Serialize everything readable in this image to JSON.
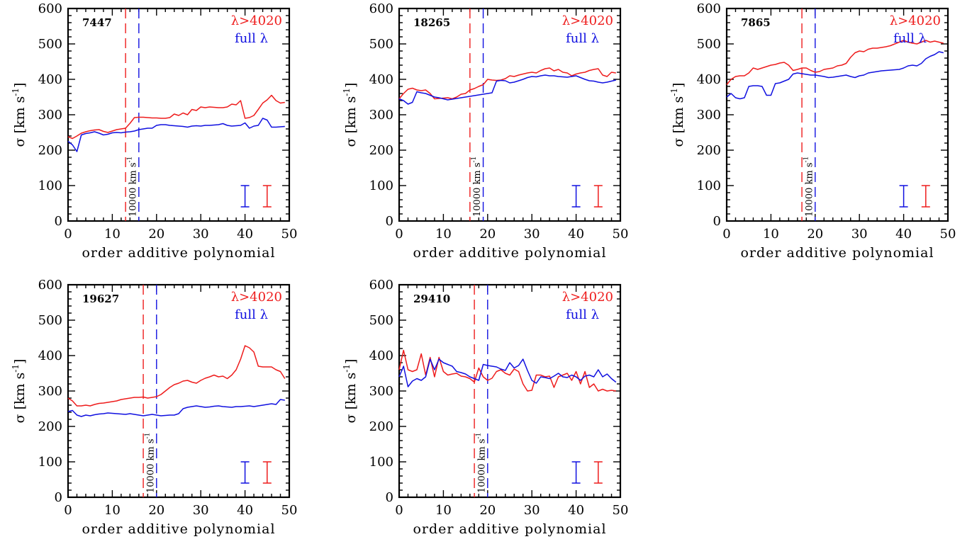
{
  "figure": {
    "xlabel": "order additive polynomial",
    "ylabel_main": "σ [km s",
    "ylabel_exp": "-1",
    "ylabel_close": "]",
    "legend_red": "λ>4020",
    "legend_blue": "full λ",
    "vline_label_main": "10000 km s",
    "vline_label_exp": "-1",
    "colors": {
      "red": "#ee1c1c",
      "blue": "#1010e0",
      "axis": "#000000"
    }
  },
  "chart_data": [
    {
      "type": "line",
      "id": "7447",
      "xlim": [
        0,
        50
      ],
      "ylim": [
        0,
        600
      ],
      "xticks": [
        0,
        10,
        20,
        30,
        40,
        50
      ],
      "yticks": [
        0,
        100,
        200,
        300,
        400,
        500,
        600
      ],
      "xlabel": "order additive polynomial",
      "ylabel": "σ [km s-1]",
      "vlines": [
        {
          "x": 13,
          "color": "red"
        },
        {
          "x": 16,
          "color": "blue"
        }
      ],
      "errorbars": [
        {
          "x": 40,
          "y": 70,
          "half": 30,
          "color": "blue"
        },
        {
          "x": 45,
          "y": 70,
          "half": 30,
          "color": "red"
        }
      ],
      "series": [
        {
          "name": "λ>4020",
          "color": "red",
          "values": [
            238,
            233,
            240,
            248,
            252,
            255,
            257,
            258,
            253,
            250,
            254,
            258,
            260,
            262,
            276,
            292,
            293,
            293,
            292,
            291,
            291,
            290,
            290,
            292,
            302,
            298,
            305,
            300,
            315,
            312,
            322,
            320,
            322,
            321,
            320,
            320,
            322,
            330,
            328,
            340,
            290,
            292,
            298,
            315,
            333,
            342,
            355,
            340,
            333,
            335
          ]
        },
        {
          "name": "full λ",
          "color": "blue",
          "values": [
            225,
            215,
            196,
            243,
            247,
            249,
            252,
            248,
            243,
            245,
            249,
            250,
            249,
            251,
            252,
            254,
            258,
            260,
            262,
            262,
            270,
            272,
            272,
            270,
            269,
            268,
            267,
            265,
            268,
            269,
            268,
            270,
            270,
            271,
            272,
            275,
            270,
            268,
            269,
            270,
            277,
            262,
            268,
            270,
            290,
            285,
            265,
            265,
            266,
            267
          ]
        }
      ]
    },
    {
      "type": "line",
      "id": "18265",
      "xlim": [
        0,
        50
      ],
      "ylim": [
        0,
        600
      ],
      "xticks": [
        0,
        10,
        20,
        30,
        40,
        50
      ],
      "yticks": [
        0,
        100,
        200,
        300,
        400,
        500,
        600
      ],
      "xlabel": "order additive polynomial",
      "ylabel": "σ [km s-1]",
      "vlines": [
        {
          "x": 16,
          "color": "red"
        },
        {
          "x": 19,
          "color": "blue"
        }
      ],
      "errorbars": [
        {
          "x": 40,
          "y": 70,
          "half": 30,
          "color": "blue"
        },
        {
          "x": 45,
          "y": 70,
          "half": 30,
          "color": "red"
        }
      ],
      "series": [
        {
          "name": "λ>4020",
          "color": "red",
          "values": [
            345,
            360,
            372,
            375,
            370,
            368,
            370,
            360,
            345,
            346,
            347,
            348,
            345,
            350,
            358,
            360,
            370,
            374,
            380,
            385,
            400,
            398,
            397,
            398,
            402,
            410,
            408,
            412,
            415,
            418,
            420,
            418,
            425,
            430,
            432,
            424,
            428,
            420,
            418,
            410,
            415,
            418,
            420,
            425,
            428,
            430,
            412,
            408,
            420,
            418
          ]
        },
        {
          "name": "full λ",
          "color": "blue",
          "values": [
            345,
            340,
            330,
            335,
            365,
            362,
            360,
            355,
            350,
            348,
            345,
            342,
            344,
            346,
            348,
            350,
            352,
            354,
            356,
            358,
            360,
            362,
            395,
            397,
            396,
            390,
            392,
            396,
            400,
            405,
            408,
            407,
            410,
            412,
            410,
            410,
            408,
            407,
            406,
            408,
            410,
            405,
            400,
            396,
            395,
            392,
            390,
            392,
            395,
            398
          ]
        }
      ]
    },
    {
      "type": "line",
      "id": "7865",
      "xlim": [
        0,
        50
      ],
      "ylim": [
        0,
        600
      ],
      "xticks": [
        0,
        10,
        20,
        30,
        40,
        50
      ],
      "yticks": [
        0,
        100,
        200,
        300,
        400,
        500,
        600
      ],
      "xlabel": "order additive polynomial",
      "ylabel": "σ [km s-1]",
      "vlines": [
        {
          "x": 17,
          "color": "red"
        },
        {
          "x": 20,
          "color": "blue"
        }
      ],
      "errorbars": [
        {
          "x": 40,
          "y": 70,
          "half": 30,
          "color": "blue"
        },
        {
          "x": 45,
          "y": 70,
          "half": 30,
          "color": "red"
        }
      ],
      "series": [
        {
          "name": "λ>4020",
          "color": "red",
          "values": [
            385,
            400,
            408,
            410,
            410,
            418,
            432,
            428,
            432,
            436,
            440,
            442,
            446,
            448,
            440,
            425,
            428,
            432,
            432,
            425,
            420,
            422,
            428,
            430,
            432,
            438,
            440,
            445,
            462,
            475,
            480,
            478,
            485,
            488,
            488,
            490,
            492,
            495,
            500,
            505,
            510,
            505,
            502,
            500,
            505,
            510,
            505,
            508,
            505,
            502
          ]
        },
        {
          "name": "full λ",
          "color": "blue",
          "values": [
            350,
            360,
            348,
            345,
            348,
            380,
            382,
            382,
            380,
            355,
            355,
            388,
            390,
            395,
            400,
            415,
            418,
            416,
            414,
            412,
            412,
            410,
            408,
            405,
            406,
            408,
            410,
            412,
            408,
            405,
            410,
            412,
            418,
            420,
            422,
            424,
            425,
            426,
            427,
            428,
            432,
            438,
            440,
            438,
            445,
            458,
            465,
            470,
            478,
            475
          ]
        }
      ]
    },
    {
      "type": "line",
      "id": "19627",
      "xlim": [
        0,
        50
      ],
      "ylim": [
        0,
        600
      ],
      "xticks": [
        0,
        10,
        20,
        30,
        40,
        50
      ],
      "yticks": [
        0,
        100,
        200,
        300,
        400,
        500,
        600
      ],
      "xlabel": "order additive polynomial",
      "ylabel": "σ [km s-1]",
      "vlines": [
        {
          "x": 17,
          "color": "red"
        },
        {
          "x": 20,
          "color": "blue"
        }
      ],
      "errorbars": [
        {
          "x": 40,
          "y": 70,
          "half": 30,
          "color": "blue"
        },
        {
          "x": 45,
          "y": 70,
          "half": 30,
          "color": "red"
        }
      ],
      "series": [
        {
          "name": "λ>4020",
          "color": "red",
          "values": [
            280,
            272,
            258,
            258,
            260,
            258,
            262,
            265,
            266,
            268,
            270,
            272,
            276,
            278,
            280,
            282,
            282,
            283,
            280,
            282,
            284,
            290,
            300,
            310,
            318,
            322,
            328,
            330,
            325,
            322,
            330,
            336,
            340,
            345,
            340,
            342,
            335,
            345,
            360,
            390,
            428,
            422,
            410,
            370,
            368,
            368,
            368,
            360,
            355,
            335
          ]
        },
        {
          "name": "full λ",
          "color": "blue",
          "values": [
            242,
            245,
            232,
            228,
            232,
            230,
            233,
            235,
            236,
            238,
            237,
            236,
            235,
            234,
            236,
            234,
            232,
            230,
            232,
            234,
            232,
            230,
            231,
            232,
            232,
            236,
            250,
            254,
            256,
            258,
            256,
            254,
            255,
            257,
            258,
            256,
            255,
            254,
            256,
            256,
            257,
            258,
            256,
            258,
            260,
            262,
            264,
            262,
            276,
            274
          ]
        }
      ]
    },
    {
      "type": "line",
      "id": "29410",
      "xlim": [
        0,
        50
      ],
      "ylim": [
        0,
        600
      ],
      "xticks": [
        0,
        10,
        20,
        30,
        40,
        50
      ],
      "yticks": [
        0,
        100,
        200,
        300,
        400,
        500,
        600
      ],
      "xlabel": "order additive polynomial",
      "ylabel": "σ [km s-1]",
      "vlines": [
        {
          "x": 17,
          "color": "red"
        },
        {
          "x": 20,
          "color": "blue"
        }
      ],
      "errorbars": [
        {
          "x": 40,
          "y": 70,
          "half": 30,
          "color": "blue"
        },
        {
          "x": 45,
          "y": 70,
          "half": 30,
          "color": "red"
        }
      ],
      "series": [
        {
          "name": "λ>4020",
          "color": "red",
          "values": [
            360,
            415,
            360,
            355,
            360,
            405,
            345,
            395,
            340,
            395,
            355,
            345,
            348,
            350,
            342,
            340,
            335,
            325,
            365,
            340,
            330,
            336,
            355,
            360,
            350,
            345,
            362,
            355,
            320,
            300,
            302,
            345,
            345,
            340,
            342,
            310,
            340,
            345,
            350,
            330,
            355,
            320,
            355,
            310,
            320,
            300,
            305,
            300,
            302,
            300
          ]
        },
        {
          "name": "full λ",
          "color": "blue",
          "values": [
            340,
            370,
            312,
            328,
            335,
            330,
            340,
            390,
            360,
            390,
            380,
            375,
            370,
            355,
            352,
            348,
            340,
            335,
            330,
            375,
            372,
            370,
            368,
            362,
            358,
            380,
            365,
            372,
            390,
            358,
            330,
            322,
            340,
            338,
            335,
            342,
            350,
            340,
            338,
            345,
            340,
            330,
            342,
            345,
            340,
            360,
            340,
            348,
            335,
            325
          ]
        }
      ]
    }
  ]
}
